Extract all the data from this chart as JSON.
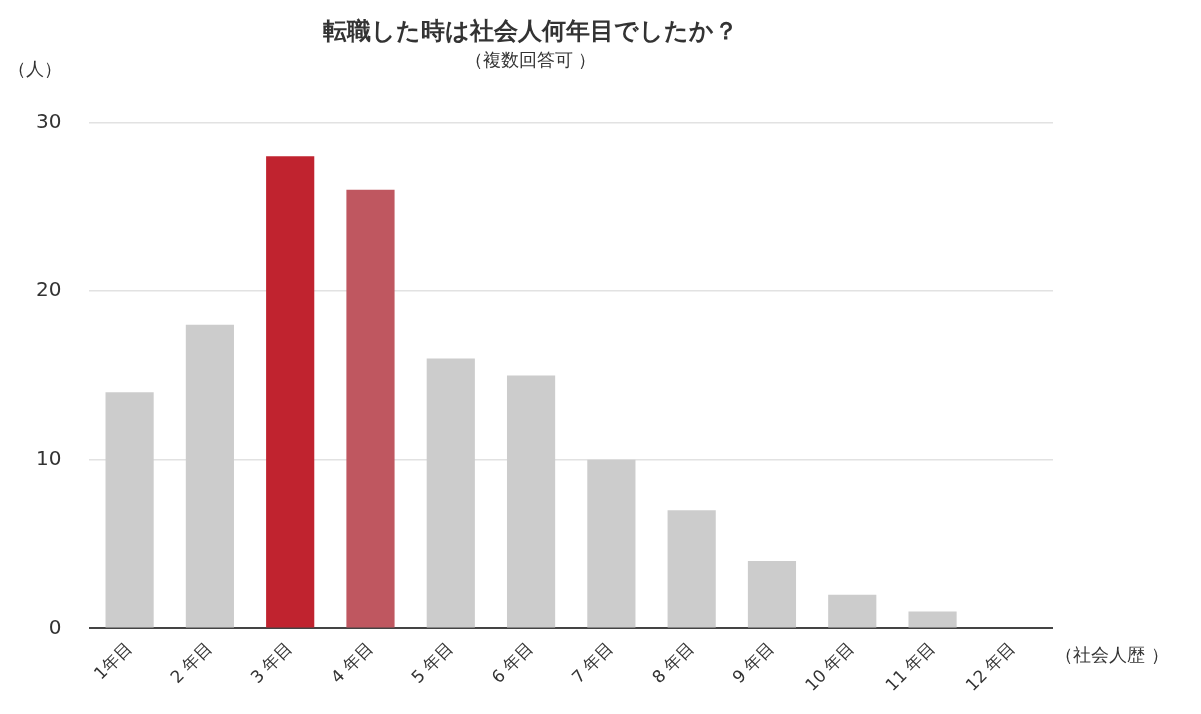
{
  "chart_data": {
    "type": "bar",
    "title": "転職した時は社会人何年目でしたか？",
    "subtitle": "（複数回答可 ）",
    "ylabel": "（人）",
    "xlabel": "（社会人歴 ）",
    "categories": [
      "1年目",
      "2 年目",
      "3 年目",
      "4 年目",
      "5 年目",
      "6 年目",
      "7 年目",
      "8 年目",
      "9 年目",
      "10 年目",
      "11 年目",
      "12 年目"
    ],
    "values": [
      14,
      18,
      28,
      26,
      16,
      15,
      10,
      7,
      4,
      2,
      1,
      0
    ],
    "colors": [
      "#cccccc",
      "#cccccc",
      "#c0232f",
      "#bf5760",
      "#cccccc",
      "#cccccc",
      "#cccccc",
      "#cccccc",
      "#cccccc",
      "#cccccc",
      "#cccccc",
      "#cccccc"
    ],
    "ylim": [
      0,
      30
    ],
    "yticks": [
      0,
      10,
      20,
      30
    ],
    "grid": "y",
    "legend": false
  }
}
